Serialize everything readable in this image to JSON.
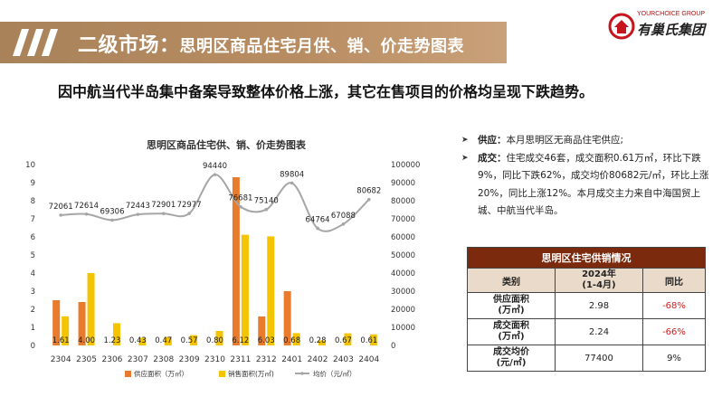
{
  "header": {
    "title_main": "二级市场：",
    "title_sub": "思明区商品住宅月供、销、价走势图表",
    "logo_en": "YOURCHOICE GROUP",
    "logo_cn": "有巢氏集团"
  },
  "headline": "因中航当代半岛集中备案导致整体价格上涨，其它在售项目的价格均呈现下跌趋势。",
  "chart_data": {
    "type": "bar",
    "title": "思明区商品住宅供、销、价走势图表",
    "categories": [
      "2304",
      "2305",
      "2306",
      "2307",
      "2308",
      "2309",
      "2310",
      "2311",
      "2312",
      "2401",
      "2402",
      "2403",
      "2404"
    ],
    "series": [
      {
        "name": "供应面积（万㎡）",
        "type": "bar",
        "axis": "left",
        "color": "#e87b2c",
        "values": [
          2.5,
          2.4,
          0,
          0,
          0,
          0,
          0,
          9.3,
          1.6,
          3.0,
          0,
          0,
          0
        ]
      },
      {
        "name": "销售面积(万㎡)",
        "type": "bar",
        "axis": "left",
        "color": "#f5c400",
        "values": [
          1.61,
          4.0,
          1.23,
          0.43,
          0.47,
          0.57,
          0.8,
          6.12,
          6.03,
          0.68,
          0.28,
          0.67,
          0.61
        ]
      },
      {
        "name": "均价（元/㎡）",
        "type": "line",
        "axis": "right",
        "color": "#a6a6a6",
        "values": [
          72061,
          72614,
          69306,
          72443,
          72901,
          72977,
          94440,
          76681,
          75140,
          89804,
          64764,
          67088,
          80682
        ]
      }
    ],
    "bar_labels": [
      "1.61",
      "4.00",
      "1.23",
      "0.43",
      "0.47",
      "0.57",
      "0.80",
      "6.12",
      "6.03",
      "0.68",
      "0.28",
      "0.67",
      "0.61"
    ],
    "line_labels": [
      "72061",
      "72614",
      "69306",
      "72443",
      "72901",
      "72977",
      "94440",
      "76681",
      "75140",
      "89804",
      "64764",
      "67088",
      "80682"
    ],
    "ylim": [
      0,
      10
    ],
    "y_ticks": [
      "0",
      "1",
      "2",
      "3",
      "4",
      "5",
      "6",
      "7",
      "8",
      "9",
      "10"
    ],
    "y2lim": [
      0,
      100000
    ],
    "y2_ticks": [
      "0",
      "10000",
      "20000",
      "30000",
      "40000",
      "50000",
      "60000",
      "70000",
      "80000",
      "90000",
      "100000"
    ],
    "legend_position": "bottom",
    "grid": false
  },
  "bullets": [
    {
      "label": "供应：",
      "text": "本月思明区无商品住宅供应;"
    },
    {
      "label": "成交：",
      "text": "住宅成交46套，成交面积0.61万㎡，环比下跌9%，同比下跌62%，成交均价80682元/㎡，环比上涨20%，同比上涨12%。本月成交主力来自中海国贸上城、中航当代半岛。"
    }
  ],
  "table": {
    "caption": "思明区住宅供销情况",
    "headers": [
      "类别",
      "2024年\n(1-4月)",
      "同比"
    ],
    "rows": [
      {
        "label": "供应面积\n(万㎡)",
        "value": "2.98",
        "change": "-68%",
        "negative": true
      },
      {
        "label": "成交面积\n(万㎡)",
        "value": "2.24",
        "change": "-66%",
        "negative": true
      },
      {
        "label": "成交均价\n(元/㎡)",
        "value": "77400",
        "change": "9%",
        "negative": false
      }
    ]
  }
}
